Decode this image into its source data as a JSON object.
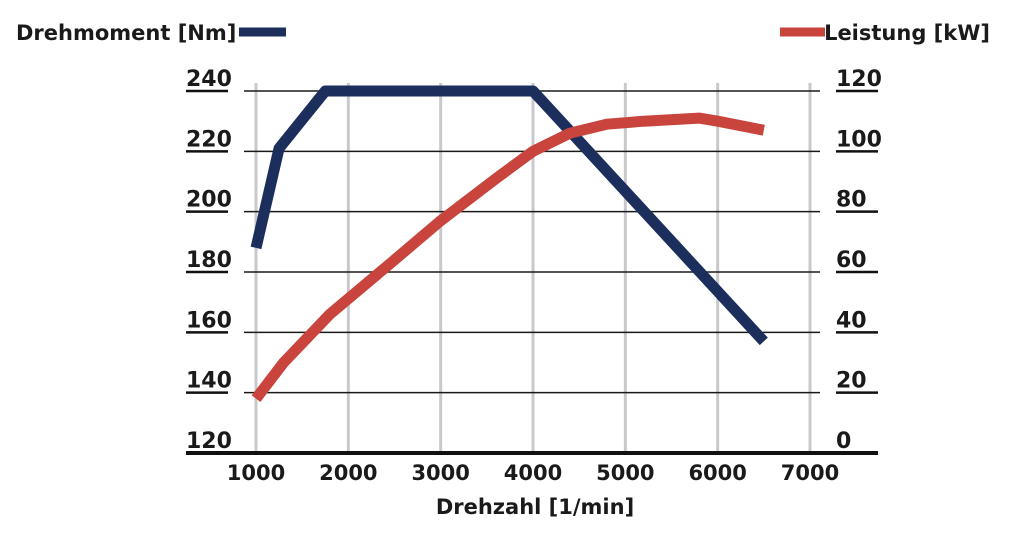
{
  "chart_data": {
    "type": "line",
    "xlabel": "Drehzahl [1/min]",
    "x_ticks": [
      1000,
      2000,
      3000,
      4000,
      5000,
      6000,
      7000
    ],
    "xlim": [
      900,
      7000
    ],
    "y_left": {
      "label": "Drehmoment [Nm]",
      "ticks": [
        120,
        140,
        160,
        180,
        200,
        220,
        240
      ],
      "ylim": [
        120,
        240
      ]
    },
    "y_right": {
      "label": "Leistung [kW]",
      "ticks": [
        0,
        20,
        40,
        60,
        80,
        100,
        120
      ],
      "ylim": [
        0,
        120
      ]
    },
    "grid": true,
    "legend": [
      "top-left",
      "top-right"
    ],
    "series": [
      {
        "name": "Drehmoment [Nm]",
        "axis": "left",
        "color": "#1b2e5c",
        "x": [
          1000,
          1250,
          1750,
          4000,
          6500
        ],
        "y": [
          188,
          221,
          240,
          240,
          157
        ]
      },
      {
        "name": "Leistung [kW]",
        "axis": "right",
        "color": "#c8443c",
        "x": [
          1000,
          1300,
          1800,
          2500,
          3000,
          3600,
          4000,
          4400,
          4800,
          5200,
          5800,
          6000,
          6500
        ],
        "y": [
          18,
          30,
          46,
          64,
          77,
          91,
          100,
          106,
          109,
          110,
          111,
          110,
          107
        ]
      }
    ]
  }
}
